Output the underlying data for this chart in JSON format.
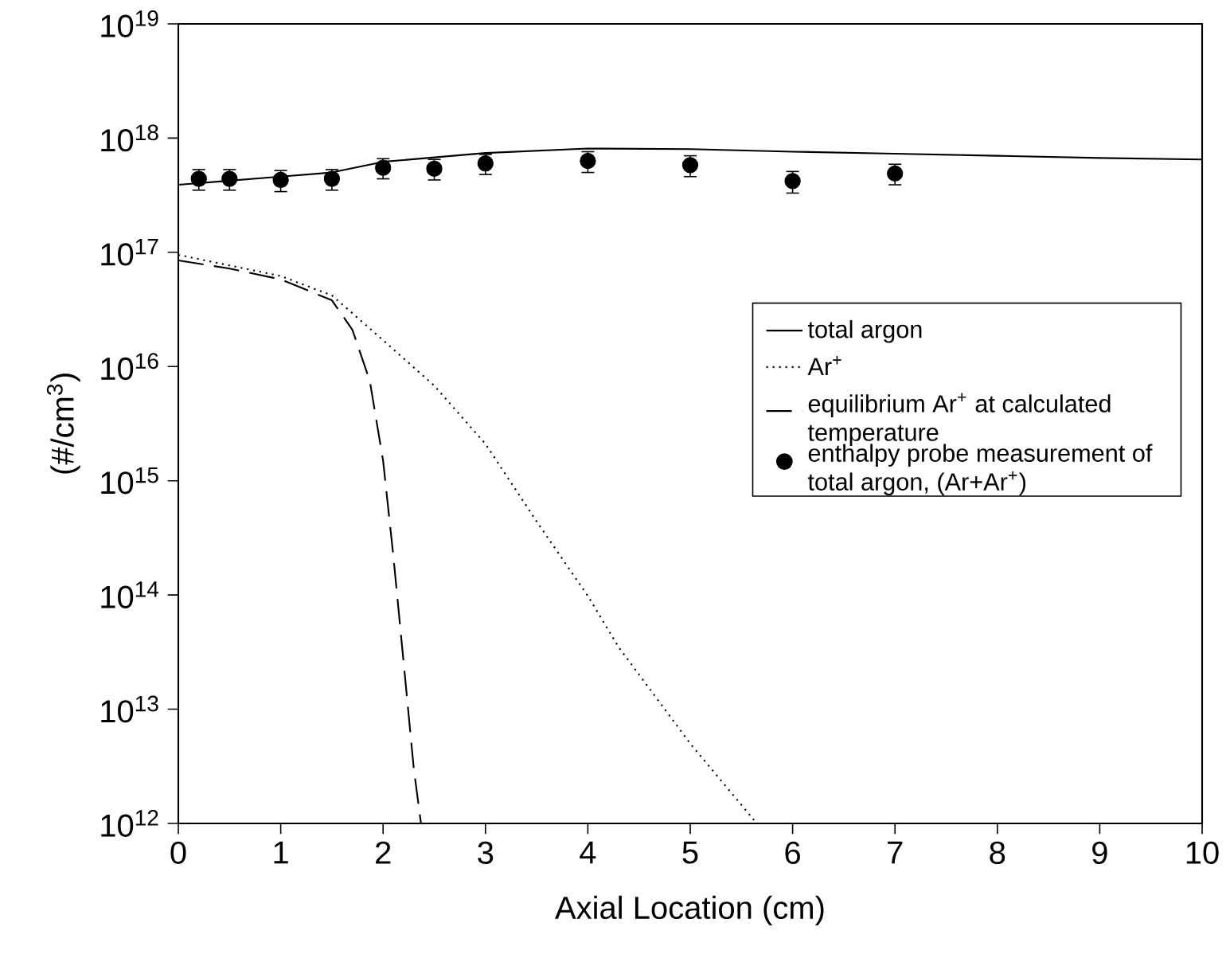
{
  "chart_data": {
    "type": "line",
    "xlabel": "Axial Location (cm)",
    "ylabel": "(#/cm$^{3}$)",
    "log": "y",
    "xlim": [
      0,
      10
    ],
    "xticks": [
      0,
      1,
      2,
      3,
      4,
      5,
      6,
      7,
      8,
      9,
      10
    ],
    "ylim": [
      1000000000000.0,
      1e+19
    ],
    "yticks": [
      {
        "value": 1000000000000.0,
        "label": "10$^{12}$"
      },
      {
        "value": 10000000000000.0,
        "label": "10$^{13}$"
      },
      {
        "value": 100000000000000.0,
        "label": "10$^{14}$"
      },
      {
        "value": 1000000000000000.0,
        "label": "10$^{15}$"
      },
      {
        "value": 1e+16,
        "label": "10$^{16}$"
      },
      {
        "value": 1e+17,
        "label": "10$^{17}$"
      },
      {
        "value": 1e+18,
        "label": "10$^{18}$"
      },
      {
        "value": 1e+19,
        "label": "10$^{19}$"
      }
    ],
    "legend": "right",
    "series": [
      {
        "name": "total argon",
        "color": "#000000",
        "line_style": "solid",
        "marker": "none",
        "x": [
          0,
          1,
          1.5,
          2,
          3,
          4,
          5,
          6,
          7,
          8,
          9,
          10
        ],
        "values": [
          3.9e+17,
          4.6e+17,
          5e+17,
          6.2e+17,
          7.4e+17,
          8.1e+17,
          8e+17,
          7.6e+17,
          7.3e+17,
          7e+17,
          6.7e+17,
          6.5e+17
        ]
      },
      {
        "name": "Ar$^{+}$",
        "color": "#000000",
        "line_style": "dotted",
        "marker": "none",
        "x": [
          0,
          1,
          1.5,
          2,
          2.5,
          3,
          3.5,
          4,
          4.3,
          5,
          5.65
        ],
        "values": [
          9.5e+16,
          6.2e+16,
          4.2e+16,
          1.7e+16,
          6800000000000000.0,
          2100000000000000.0,
          440000000000000.0,
          98000000000000.0,
          35000000000000.0,
          5000000000000.0,
          1000000000000.0
        ]
      },
      {
        "name": "equilibrium Ar$^{+}$ at calculated temperature",
        "color": "#000000",
        "line_style": "dashed",
        "marker": "none",
        "x": [
          0,
          0.5,
          1,
          1.5,
          1.7,
          1.87,
          2.0,
          2.1,
          2.2,
          2.3,
          2.37
        ],
        "values": [
          8.5e+16,
          7.2e+16,
          5.8e+16,
          3.8e+16,
          2.1e+16,
          7500000000000000.0,
          1500000000000000.0,
          220000000000000.0,
          26000000000000.0,
          3000000000000.0,
          1000000000000.0
        ]
      },
      {
        "name": "enthalpy probe measurement of total argon, (Ar+Ar$^{+}$)",
        "type": "scatter",
        "color": "#000000",
        "marker": "circle",
        "x": [
          0.2,
          0.5,
          1,
          1.5,
          2,
          2.5,
          3,
          4,
          5,
          6,
          7
        ],
        "values": [
          4.4e+17,
          4.4e+17,
          4.3e+17,
          4.4e+17,
          5.5e+17,
          5.4e+17,
          6e+17,
          6.3e+17,
          5.8e+17,
          4.2e+17,
          4.9e+17
        ],
        "errors": [
          9e+16,
          9e+16,
          9e+16,
          9e+16,
          1.1e+17,
          1.1e+17,
          1.2e+17,
          1.3e+17,
          1.2e+17,
          9e+16,
          1e+17
        ]
      }
    ]
  }
}
